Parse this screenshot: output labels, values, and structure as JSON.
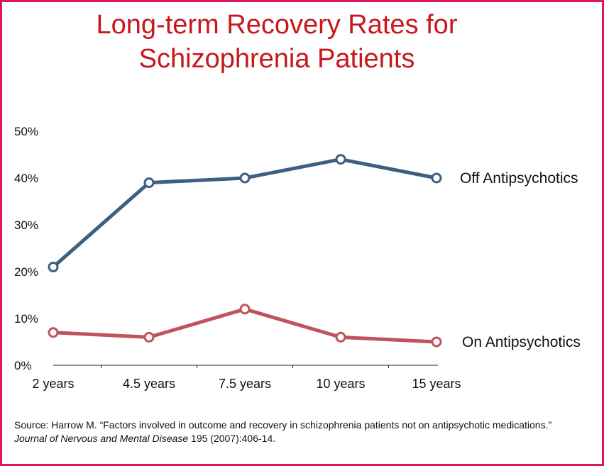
{
  "title_line1": "Long-term Recovery Rates for",
  "title_line2": "Schizophrenia Patients",
  "source": {
    "prefix": "Source: Harrow M. “Factors involved in outcome and recovery in schizophrenia patients not on antipsychotic medications.” ",
    "journal": "Journal of Nervous and Mental Disease",
    "suffix": " 195 (2007):406-14."
  },
  "colors": {
    "frame": "#e0155f",
    "title": "#c8171d",
    "off": "#3e5f80",
    "on": "#c0545c"
  },
  "chart_data": {
    "type": "line",
    "categories": [
      "2 years",
      "4.5 years",
      "7.5 years",
      "10 years",
      "15 years"
    ],
    "y_tick_labels": [
      "0%",
      "10%",
      "20%",
      "30%",
      "40%",
      "50%"
    ],
    "ylim": [
      0,
      50
    ],
    "grid": false,
    "xlabel": "",
    "ylabel": "",
    "series": [
      {
        "name": "Off Antipsychotics",
        "values": [
          21,
          39,
          40,
          44,
          40
        ]
      },
      {
        "name": "On Antipsychotics",
        "values": [
          7,
          6,
          12,
          6,
          5
        ]
      }
    ]
  }
}
